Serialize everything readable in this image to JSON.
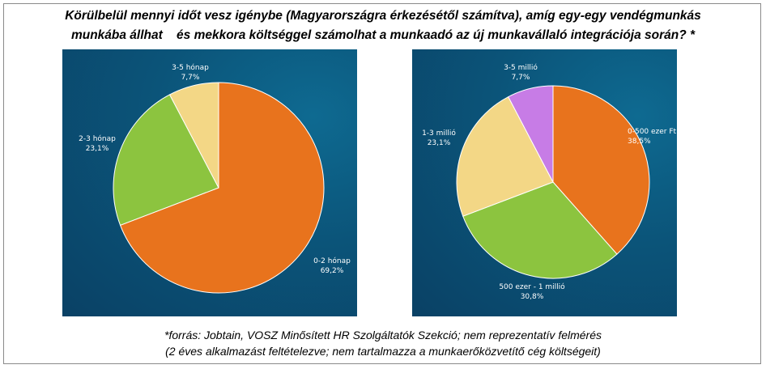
{
  "title": {
    "line1": "Körülbelül mennyi időt vesz igénybe (Magyarországra érkezésétől számítva), amíg egy-egy vendégmunkás",
    "line2": "munkába állhat    és mekkora költséggel számolhat a munkaadó az új munkavállaló integrációja során? *"
  },
  "chart_data": [
    {
      "type": "pie",
      "title": "",
      "slices": [
        {
          "label": "0-2 hónap",
          "value": 69.2,
          "display": "69,2%",
          "color": "#e8731d"
        },
        {
          "label": "2-3 hónap",
          "value": 23.1,
          "display": "23,1%",
          "color": "#8cc43f"
        },
        {
          "label": "3-5 hónap",
          "value": 7.7,
          "display": "7,7%",
          "color": "#f3d786"
        }
      ]
    },
    {
      "type": "pie",
      "title": "",
      "slices": [
        {
          "label": "0-500 ezer Ft",
          "value": 38.5,
          "display": "38,5%",
          "color": "#e8731d"
        },
        {
          "label": "500 ezer - 1 millió",
          "value": 30.8,
          "display": "30,8%",
          "color": "#8cc43f"
        },
        {
          "label": "1-3 millió",
          "value": 23.1,
          "display": "23,1%",
          "color": "#f3d786"
        },
        {
          "label": "3-5 millió",
          "value": 7.7,
          "display": "7,7%",
          "color": "#c77ce6"
        }
      ]
    }
  ],
  "source": {
    "line1": "*forrás: Jobtain, VOSZ Minősített HR Szolgáltatók Szekció; nem reprezentatív felmérés",
    "line2": "(2 éves alkalmazást feltételezve; nem tartalmazza a munkaerőközvetítő cég költségeit)"
  }
}
